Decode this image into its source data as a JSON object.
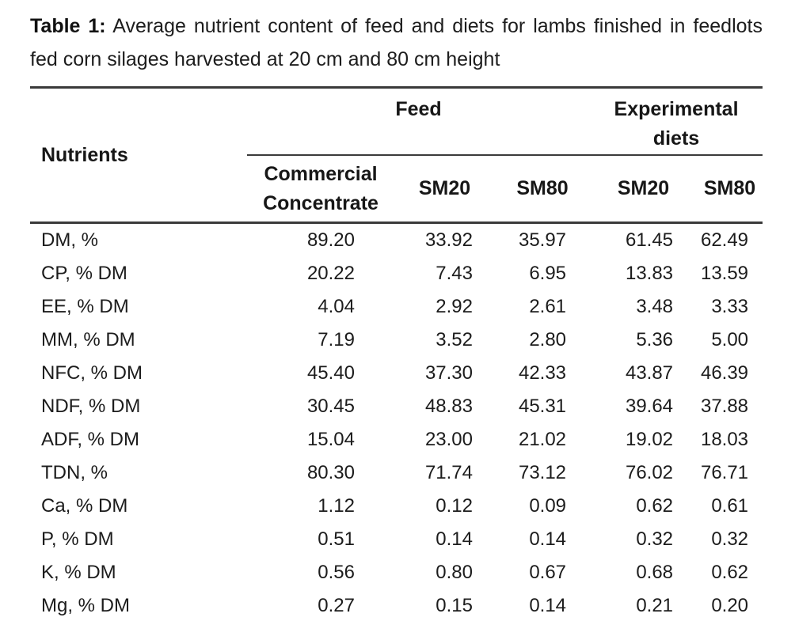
{
  "caption": {
    "label": "Table 1:",
    "text": "Average nutrient content of feed and diets for lambs finished in feedlots fed corn silages harvested at 20 cm and 80 cm height"
  },
  "table": {
    "row_header": "Nutrients",
    "groups": [
      {
        "label": "Feed",
        "colspan": 3
      },
      {
        "label": "Experimental diets",
        "colspan": 2
      }
    ],
    "columns": [
      "Commercial Concentrate",
      "SM20",
      "SM80",
      "SM20",
      "SM80"
    ],
    "rows": [
      {
        "nutrient": "DM, %",
        "values": [
          "89.20",
          "33.92",
          "35.97",
          "61.45",
          "62.49"
        ]
      },
      {
        "nutrient": "CP, % DM",
        "values": [
          "20.22",
          "7.43",
          "6.95",
          "13.83",
          "13.59"
        ]
      },
      {
        "nutrient": "EE, % DM",
        "values": [
          "4.04",
          "2.92",
          "2.61",
          "3.48",
          "3.33"
        ]
      },
      {
        "nutrient": "MM, % DM",
        "values": [
          "7.19",
          "3.52",
          "2.80",
          "5.36",
          "5.00"
        ]
      },
      {
        "nutrient": "NFC, % DM",
        "values": [
          "45.40",
          "37.30",
          "42.33",
          "43.87",
          "46.39"
        ]
      },
      {
        "nutrient": "NDF, % DM",
        "values": [
          "30.45",
          "48.83",
          "45.31",
          "39.64",
          "37.88"
        ]
      },
      {
        "nutrient": "ADF, % DM",
        "values": [
          "15.04",
          "23.00",
          "21.02",
          "19.02",
          "18.03"
        ]
      },
      {
        "nutrient": "TDN, %",
        "values": [
          "80.30",
          "71.74",
          "73.12",
          "76.02",
          "76.71"
        ]
      },
      {
        "nutrient": "Ca, % DM",
        "values": [
          "1.12",
          "0.12",
          "0.09",
          "0.62",
          "0.61"
        ]
      },
      {
        "nutrient": "P, % DM",
        "values": [
          "0.51",
          "0.14",
          "0.14",
          "0.32",
          "0.32"
        ]
      },
      {
        "nutrient": "K, % DM",
        "values": [
          "0.56",
          "0.80",
          "0.67",
          "0.68",
          "0.62"
        ]
      },
      {
        "nutrient": "Mg, % DM",
        "values": [
          "0.27",
          "0.15",
          "0.14",
          "0.21",
          "0.20"
        ]
      }
    ]
  },
  "colors": {
    "text": "#1c1c1c",
    "rule": "#3a3a3a",
    "background": "#ffffff"
  },
  "chart_data": {
    "type": "table",
    "title": "Table 1: Average nutrient content of feed and diets for lambs finished in feedlots fed corn silages harvested at 20 cm and 80 cm height",
    "column_groups": [
      "Feed",
      "Feed",
      "Feed",
      "Experimental diets",
      "Experimental diets"
    ],
    "columns": [
      "Commercial Concentrate",
      "SM20",
      "SM80",
      "SM20",
      "SM80"
    ],
    "row_labels": [
      "DM, %",
      "CP, % DM",
      "EE, % DM",
      "MM, % DM",
      "NFC, % DM",
      "NDF, % DM",
      "ADF, % DM",
      "TDN, %",
      "Ca, % DM",
      "P, % DM",
      "K, % DM",
      "Mg, % DM"
    ],
    "values": [
      [
        89.2,
        33.92,
        35.97,
        61.45,
        62.49
      ],
      [
        20.22,
        7.43,
        6.95,
        13.83,
        13.59
      ],
      [
        4.04,
        2.92,
        2.61,
        3.48,
        3.33
      ],
      [
        7.19,
        3.52,
        2.8,
        5.36,
        5.0
      ],
      [
        45.4,
        37.3,
        42.33,
        43.87,
        46.39
      ],
      [
        30.45,
        48.83,
        45.31,
        39.64,
        37.88
      ],
      [
        15.04,
        23.0,
        21.02,
        19.02,
        18.03
      ],
      [
        80.3,
        71.74,
        73.12,
        76.02,
        76.71
      ],
      [
        1.12,
        0.12,
        0.09,
        0.62,
        0.61
      ],
      [
        0.51,
        0.14,
        0.14,
        0.32,
        0.32
      ],
      [
        0.56,
        0.8,
        0.67,
        0.68,
        0.62
      ],
      [
        0.27,
        0.15,
        0.14,
        0.21,
        0.2
      ]
    ]
  }
}
